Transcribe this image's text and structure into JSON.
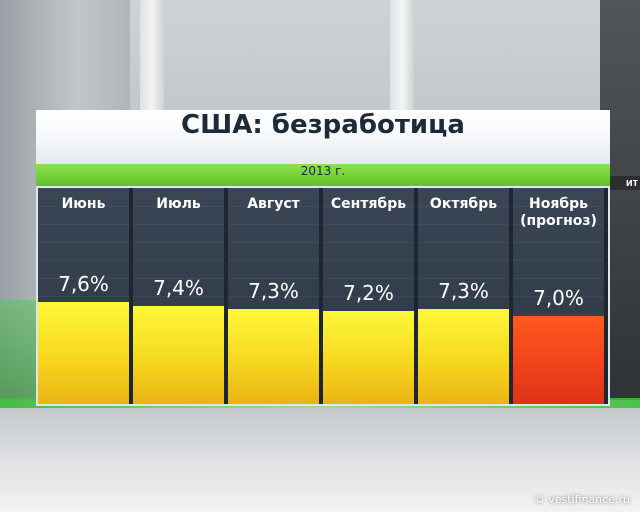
{
  "board": {
    "title": "США: безработица",
    "subtitle": "2013 г."
  },
  "chart_data": {
    "type": "bar",
    "title": "США: безработица",
    "subtitle": "2013 г.",
    "categories": [
      "Июнь",
      "Июль",
      "Август",
      "Сентябрь",
      "Октябрь",
      "Ноябрь (прогноз)"
    ],
    "labels": [
      "7,6%",
      "7,4%",
      "7,3%",
      "7,2%",
      "7,3%",
      "7,0%"
    ],
    "values": [
      7.6,
      7.4,
      7.3,
      7.2,
      7.3,
      7.0
    ],
    "kinds": [
      "actual",
      "actual",
      "actual",
      "actual",
      "actual",
      "forecast"
    ],
    "colors": {
      "actual": "#f6e020",
      "forecast": "#ef4a1c",
      "background": "#2c3643"
    },
    "ylim": [
      0,
      8
    ],
    "grid": false,
    "legend": "none"
  },
  "credit": "© vestifinance.ru"
}
